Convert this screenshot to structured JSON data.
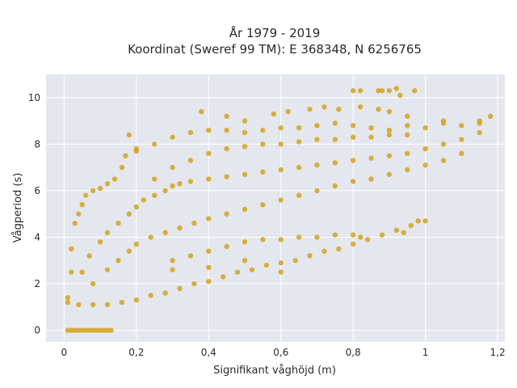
{
  "chart_data": {
    "type": "scatter",
    "title_lines": [
      "År 1979 - 2019",
      "Koordinat (Sweref 99 TM): E 368348, N 6256765"
    ],
    "xlabel": "Signifikant våghöjd (m)",
    "ylabel": "Vågperiod (s)",
    "xlim": [
      -0.05,
      1.22
    ],
    "ylim": [
      -0.5,
      11.0
    ],
    "x_ticks": [
      0,
      0.2,
      0.4,
      0.6,
      0.8,
      1,
      1.2
    ],
    "x_tick_labels": [
      "0",
      "0,2",
      "0,4",
      "0,6",
      "0,8",
      "1",
      "1,2"
    ],
    "y_ticks": [
      0,
      2,
      4,
      6,
      8,
      10
    ],
    "y_tick_labels": [
      "0",
      "2",
      "4",
      "6",
      "8",
      "10"
    ],
    "grid": true,
    "colors": {
      "marker": "#d4a21f",
      "plot_bg": "#e5e7ee",
      "grid": "#ffffff"
    },
    "series": [
      {
        "points": [
          [
            0.01,
            0
          ],
          [
            0.02,
            0
          ],
          [
            0.03,
            0
          ],
          [
            0.04,
            0
          ],
          [
            0.05,
            0
          ],
          [
            0.06,
            0
          ],
          [
            0.07,
            0
          ],
          [
            0.08,
            0
          ],
          [
            0.09,
            0
          ],
          [
            0.1,
            0
          ],
          [
            0.11,
            0
          ],
          [
            0.12,
            0
          ],
          [
            0.13,
            0
          ],
          [
            0.01,
            1.4
          ],
          [
            0.01,
            1.2
          ],
          [
            0.02,
            2.5
          ],
          [
            0.02,
            3.5
          ],
          [
            0.03,
            4.6
          ],
          [
            0.04,
            5.0
          ],
          [
            0.05,
            5.4
          ],
          [
            0.06,
            5.8
          ],
          [
            0.08,
            6.0
          ],
          [
            0.1,
            6.1
          ],
          [
            0.12,
            6.3
          ],
          [
            0.14,
            6.5
          ],
          [
            0.16,
            7.0
          ],
          [
            0.17,
            7.5
          ],
          [
            0.04,
            1.1
          ],
          [
            0.08,
            1.1
          ],
          [
            0.12,
            1.1
          ],
          [
            0.16,
            1.2
          ],
          [
            0.2,
            1.3
          ],
          [
            0.24,
            1.5
          ],
          [
            0.28,
            1.6
          ],
          [
            0.32,
            1.8
          ],
          [
            0.36,
            2.0
          ],
          [
            0.4,
            2.1
          ],
          [
            0.44,
            2.3
          ],
          [
            0.48,
            2.5
          ],
          [
            0.52,
            2.6
          ],
          [
            0.56,
            2.8
          ],
          [
            0.6,
            2.9
          ],
          [
            0.64,
            3.0
          ],
          [
            0.68,
            3.2
          ],
          [
            0.72,
            3.4
          ],
          [
            0.76,
            3.5
          ],
          [
            0.8,
            3.7
          ],
          [
            0.84,
            3.9
          ],
          [
            0.88,
            4.1
          ],
          [
            0.92,
            4.3
          ],
          [
            0.96,
            4.5
          ],
          [
            0.98,
            4.7
          ],
          [
            0.05,
            2.5
          ],
          [
            0.07,
            3.2
          ],
          [
            0.1,
            3.8
          ],
          [
            0.12,
            4.2
          ],
          [
            0.15,
            4.6
          ],
          [
            0.18,
            5.0
          ],
          [
            0.2,
            5.3
          ],
          [
            0.22,
            5.6
          ],
          [
            0.25,
            5.8
          ],
          [
            0.28,
            6.0
          ],
          [
            0.3,
            6.2
          ],
          [
            0.32,
            6.3
          ],
          [
            0.35,
            6.4
          ],
          [
            0.4,
            6.5
          ],
          [
            0.45,
            6.6
          ],
          [
            0.5,
            6.7
          ],
          [
            0.55,
            6.8
          ],
          [
            0.6,
            6.9
          ],
          [
            0.65,
            7.0
          ],
          [
            0.7,
            7.1
          ],
          [
            0.75,
            7.2
          ],
          [
            0.8,
            7.3
          ],
          [
            0.85,
            7.4
          ],
          [
            0.9,
            7.5
          ],
          [
            0.95,
            7.6
          ],
          [
            1.0,
            7.8
          ],
          [
            1.05,
            8.0
          ],
          [
            1.1,
            8.2
          ],
          [
            1.15,
            8.5
          ],
          [
            1.18,
            9.2
          ],
          [
            0.08,
            2.0
          ],
          [
            0.12,
            2.6
          ],
          [
            0.15,
            3.0
          ],
          [
            0.18,
            3.4
          ],
          [
            0.2,
            3.7
          ],
          [
            0.24,
            4.0
          ],
          [
            0.28,
            4.2
          ],
          [
            0.32,
            4.4
          ],
          [
            0.36,
            4.6
          ],
          [
            0.4,
            4.8
          ],
          [
            0.45,
            5.0
          ],
          [
            0.5,
            5.2
          ],
          [
            0.55,
            5.4
          ],
          [
            0.6,
            5.6
          ],
          [
            0.65,
            5.8
          ],
          [
            0.7,
            6.0
          ],
          [
            0.75,
            6.2
          ],
          [
            0.8,
            6.4
          ],
          [
            0.85,
            6.5
          ],
          [
            0.9,
            6.7
          ],
          [
            0.95,
            6.9
          ],
          [
            1.0,
            7.1
          ],
          [
            1.05,
            7.3
          ],
          [
            1.1,
            7.6
          ],
          [
            0.2,
            7.8
          ],
          [
            0.25,
            8.0
          ],
          [
            0.3,
            8.3
          ],
          [
            0.35,
            8.5
          ],
          [
            0.4,
            8.6
          ],
          [
            0.45,
            8.6
          ],
          [
            0.5,
            8.5
          ],
          [
            0.55,
            8.6
          ],
          [
            0.6,
            8.7
          ],
          [
            0.65,
            8.7
          ],
          [
            0.7,
            8.8
          ],
          [
            0.75,
            8.9
          ],
          [
            0.8,
            8.8
          ],
          [
            0.85,
            8.7
          ],
          [
            0.9,
            8.6
          ],
          [
            0.95,
            8.8
          ],
          [
            1.0,
            8.7
          ],
          [
            1.05,
            8.9
          ],
          [
            1.1,
            8.8
          ],
          [
            1.15,
            9.0
          ],
          [
            0.25,
            6.5
          ],
          [
            0.3,
            7.0
          ],
          [
            0.35,
            7.3
          ],
          [
            0.4,
            7.6
          ],
          [
            0.45,
            7.8
          ],
          [
            0.5,
            7.9
          ],
          [
            0.55,
            8.0
          ],
          [
            0.6,
            8.0
          ],
          [
            0.65,
            8.1
          ],
          [
            0.7,
            8.2
          ],
          [
            0.75,
            8.2
          ],
          [
            0.8,
            8.3
          ],
          [
            0.85,
            8.3
          ],
          [
            0.9,
            8.4
          ],
          [
            0.95,
            8.4
          ],
          [
            0.3,
            3.0
          ],
          [
            0.35,
            3.2
          ],
          [
            0.4,
            3.4
          ],
          [
            0.45,
            3.6
          ],
          [
            0.5,
            3.8
          ],
          [
            0.55,
            3.9
          ],
          [
            0.6,
            3.9
          ],
          [
            0.65,
            4.0
          ],
          [
            0.7,
            4.0
          ],
          [
            0.75,
            4.1
          ],
          [
            0.8,
            4.1
          ],
          [
            0.82,
            4.0
          ],
          [
            0.38,
            9.4
          ],
          [
            0.45,
            9.2
          ],
          [
            0.5,
            9.0
          ],
          [
            0.58,
            9.3
          ],
          [
            0.62,
            9.4
          ],
          [
            0.68,
            9.5
          ],
          [
            0.72,
            9.6
          ],
          [
            0.76,
            9.5
          ],
          [
            0.82,
            9.6
          ],
          [
            0.87,
            9.5
          ],
          [
            0.9,
            9.4
          ],
          [
            0.95,
            9.2
          ],
          [
            1.05,
            9.0
          ],
          [
            1.15,
            8.9
          ],
          [
            0.8,
            10.3
          ],
          [
            0.82,
            10.3
          ],
          [
            0.87,
            10.3
          ],
          [
            0.88,
            10.3
          ],
          [
            0.9,
            10.3
          ],
          [
            0.92,
            10.4
          ],
          [
            0.93,
            10.1
          ],
          [
            0.97,
            10.3
          ],
          [
            0.94,
            4.2
          ],
          [
            1.0,
            4.7
          ],
          [
            0.3,
            2.6
          ],
          [
            0.4,
            2.7
          ],
          [
            0.5,
            3.0
          ],
          [
            0.6,
            2.5
          ],
          [
            0.18,
            8.4
          ],
          [
            0.2,
            7.7
          ]
        ]
      }
    ]
  }
}
